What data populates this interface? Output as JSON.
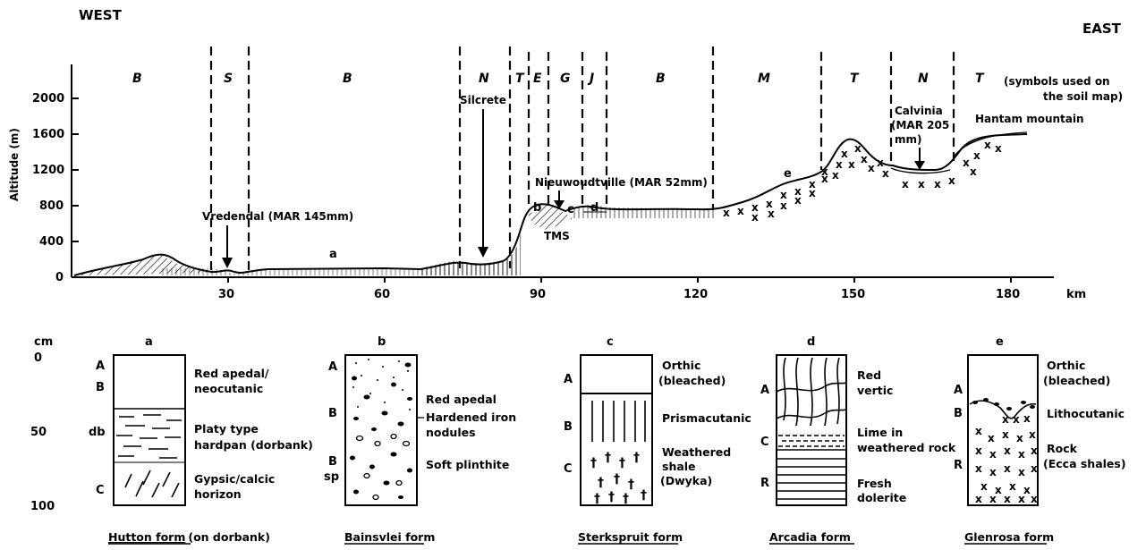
{
  "header": {
    "west": "WEST",
    "east": "EAST"
  },
  "profile": {
    "y_axis": {
      "label": "Altitude (m)",
      "ticks": [
        "0",
        "400",
        "800",
        "1200",
        "1600",
        "2000"
      ]
    },
    "x_axis": {
      "unit": "km",
      "ticks": [
        "30",
        "60",
        "90",
        "120",
        "150",
        "180"
      ]
    },
    "zones": [
      "B",
      "S",
      "B",
      "N",
      "T",
      "E",
      "G",
      "J",
      "B",
      "M",
      "T",
      "N",
      "T"
    ],
    "zones_note": "(symbols used on\nthe soil map)",
    "annotations": {
      "vredendal": "Vredendal (MAR  145mm)",
      "silcrete": "Silcrete",
      "nieuwoudtville": "Nieuwoudtville (MAR 52mm)",
      "tms": "TMS",
      "calvinia": "Calvinia\n(MAR 205\nmm)",
      "hantam": "Hantam mountain",
      "a": "a",
      "b": "b",
      "c": "c",
      "d": "d",
      "e": "e"
    }
  },
  "soil_profiles": {
    "depth_unit": "cm",
    "depth_ticks": [
      "0",
      "50",
      "100"
    ],
    "columns": [
      {
        "letter": "a",
        "horizons": [
          "A",
          "B",
          "db",
          "C"
        ],
        "descriptions": [
          "Red apedal/\nneocutanic",
          "Platy type\nhardpan (dorbank)",
          "Gypsic/calcic\nhorizon"
        ],
        "form": "Hutton form",
        "form_note": "(on dorbank)"
      },
      {
        "letter": "b",
        "horizons": [
          "A",
          "B",
          "B",
          "sp"
        ],
        "descriptions": [
          "Red apedal",
          "Hardened iron\nnodules",
          "Soft plinthite"
        ],
        "form": "Bainsvlei form",
        "form_note": ""
      },
      {
        "letter": "c",
        "horizons": [
          "A",
          "B",
          "C"
        ],
        "descriptions": [
          "Orthic\n(bleached)",
          "Prismacutanic",
          "Weathered\nshale\n(Dwyka)"
        ],
        "form": "Sterkspruit form",
        "form_note": ""
      },
      {
        "letter": "d",
        "horizons": [
          "A",
          "C",
          "R"
        ],
        "descriptions": [
          "Red\nvertic",
          "Lime in\nweathered rock",
          "Fresh\ndolerite"
        ],
        "form": "Arcadia form",
        "form_note": ""
      },
      {
        "letter": "e",
        "horizons": [
          "A",
          "B",
          "R"
        ],
        "descriptions": [
          "Orthic\n(bleached)",
          "Lithocutanic",
          "Rock\n(Ecca shales)"
        ],
        "form": "Glenrosa form",
        "form_note": ""
      }
    ]
  }
}
